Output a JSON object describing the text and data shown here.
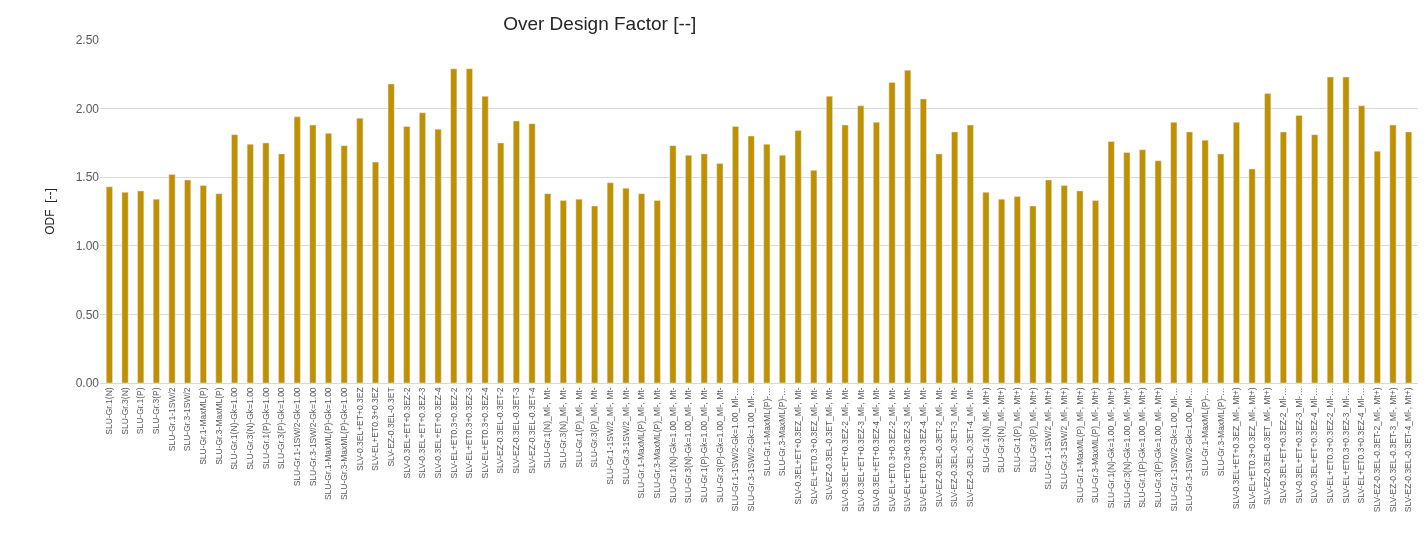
{
  "chart_data": {
    "type": "bar",
    "title": "Over Design Factor [--]",
    "ylabel": "ODF  [--]",
    "categories": [
      "SLU-Gr.1(N)",
      "SLU-Gr.3(N)",
      "SLU-Gr.1(P)",
      "SLU-Gr.3(P)",
      "SLU-Gr.1-1SW/2",
      "SLU-Gr.3-1SW/2",
      "SLU-Gr.1-MaxML(P)",
      "SLU-Gr.3-MaxML(P)",
      "SLU-Gr.1(N)-Gk=1.00",
      "SLU-Gr.3(N)-Gk=1.00",
      "SLU-Gr.1(P)-Gk=1.00",
      "SLU-Gr.3(P)-Gk=1.00",
      "SLU-Gr.1-1SW/2-Gk=1.00",
      "SLU-Gr.3-1SW/2-Gk=1.00",
      "SLU-Gr.1-MaxML(P)-Gk=1.00",
      "SLU-Gr.3-MaxML(P)-Gk=1.00",
      "SLV-0.3EL+ET+0.3EZ",
      "SLV-EL+ET0.3+0.3EZ",
      "SLV-EZ-0.3EL-0.3ET",
      "SLV-0.3EL+ET+0.3EZ-2",
      "SLV-0.3EL+ET+0.3EZ-3",
      "SLV-0.3EL+ET+0.3EZ-4",
      "SLV-EL+ET0.3+0.3EZ-2",
      "SLV-EL+ET0.3+0.3EZ-3",
      "SLV-EL+ET0.3+0.3EZ-4",
      "SLV-EZ-0.3EL-0.3ET-2",
      "SLV-EZ-0.3EL-0.3ET-3",
      "SLV-EZ-0.3EL-0.3ET-4",
      "SLU-Gr.1(N)_Ml-, Mt-",
      "SLU-Gr.3(N)_Ml-, Mt-",
      "SLU-Gr.1(P)_Ml-, Mt-",
      "SLU-Gr.3(P)_Ml-, Mt-",
      "SLU-Gr.1-1SW/2_Ml-, Mt-",
      "SLU-Gr.3-1SW/2_Ml-, Mt-",
      "SLU-Gr.1-MaxML(P)_Ml-, Mt-",
      "SLU-Gr.3-MaxML(P)_Ml-, Mt-",
      "SLU-Gr.1(N)-Gk=1.00_Ml-, Mt-",
      "SLU-Gr.3(N)-Gk=1.00_Ml-, Mt-",
      "SLU-Gr.1(P)-Gk=1.00_Ml-, Mt-",
      "SLU-Gr.3(P)-Gk=1.00_Ml-, Mt-",
      "SLU-Gr.1-1SW/2-Gk=1.00_Ml-…",
      "SLU-Gr.3-1SW/2-Gk=1.00_Ml-…",
      "SLU-Gr.1-MaxML(P)-…",
      "SLU-Gr.3-MaxML(P)-…",
      "SLV-0.3EL+ET+0.3EZ_Ml-, Mt-",
      "SLV-EL+ET0.3+0.3EZ_Ml-, Mt-",
      "SLV-EZ-0.3EL-0.3ET_Ml-, Mt-",
      "SLV-0.3EL+ET+0.3EZ-2_Ml-, Mt-",
      "SLV-0.3EL+ET+0.3EZ-3_Ml-, Mt-",
      "SLV-0.3EL+ET+0.3EZ-4_Ml-, Mt-",
      "SLV-EL+ET0.3+0.3EZ-2_Ml-, Mt-",
      "SLV-EL+ET0.3+0.3EZ-3_Ml-, Mt-",
      "SLV-EL+ET0.3+0.3EZ-4_Ml-, Mt-",
      "SLV-EZ-0.3EL-0.3ET-2_Ml-, Mt-",
      "SLV-EZ-0.3EL-0.3ET-3_Ml-, Mt-",
      "SLV-EZ-0.3EL-0.3ET-4_Ml-, Mt-",
      "SLU-Gr.1(N)_Ml-, Mt+)",
      "SLU-Gr.3(N)_Ml-, Mt+)",
      "SLU-Gr.1(P)_Ml-, Mt+)",
      "SLU-Gr.3(P)_Ml-, Mt+)",
      "SLU-Gr.1-1SW/2_Ml-, Mt+)",
      "SLU-Gr.3-1SW/2_Ml-, Mt+)",
      "SLU-Gr.1-MaxML(P)_Ml-, Mt+)",
      "SLU-Gr.3-MaxML(P)_Ml-, Mt+)",
      "SLU-Gr.1(N)-Gk=1.00_Ml-, Mt+)",
      "SLU-Gr.3(N)-Gk=1.00_Ml-, Mt+)",
      "SLU-Gr.1(P)-Gk=1.00_Ml-, Mt+)",
      "SLU-Gr.3(P)-Gk=1.00_Ml-, Mt+)",
      "SLU-Gr.1-1SW/2-Gk=1.00_Ml-…",
      "SLU-Gr.3-1SW/2-Gk=1.00_Ml-…",
      "SLU-Gr.1-MaxML(P)-…",
      "SLU-Gr.3-MaxML(P)-…",
      "SLV-0.3EL+ET+0.3EZ_Ml-, Mt+)",
      "SLV-EL+ET0.3+0.3EZ_Ml-, Mt+)",
      "SLV-EZ-0.3EL-0.3ET_Ml-, Mt+)",
      "SLV-0.3EL+ET+0.3EZ-2_Ml-…",
      "SLV-0.3EL+ET+0.3EZ-3_Ml-…",
      "SLV-0.3EL+ET+0.3EZ-4_Ml-…",
      "SLV-EL+ET0.3+0.3EZ-2_Ml-…",
      "SLV-EL+ET0.3+0.3EZ-3_Ml-…",
      "SLV-EL+ET0.3+0.3EZ-4_Ml-…",
      "SLV-EZ-0.3EL-0.3ET-2_Ml-, Mt+)",
      "SLV-EZ-0.3EL-0.3ET-3_Ml-, Mt+)",
      "SLV-EZ-0.3EL-0.3ET-4_Ml-, Mt+)"
    ],
    "values": [
      1.43,
      1.39,
      1.4,
      1.34,
      1.52,
      1.48,
      1.44,
      1.38,
      1.81,
      1.74,
      1.75,
      1.67,
      1.94,
      1.88,
      1.82,
      1.73,
      1.93,
      1.61,
      2.18,
      1.87,
      1.97,
      1.85,
      2.29,
      2.29,
      2.09,
      1.75,
      1.91,
      1.89,
      1.38,
      1.33,
      1.34,
      1.29,
      1.46,
      1.42,
      1.38,
      1.33,
      1.73,
      1.66,
      1.67,
      1.6,
      1.87,
      1.8,
      1.74,
      1.66,
      1.84,
      1.55,
      2.09,
      1.88,
      2.02,
      1.9,
      2.19,
      2.28,
      2.07,
      1.67,
      1.83,
      1.88,
      1.39,
      1.34,
      1.36,
      1.29,
      1.48,
      1.44,
      1.4,
      1.33,
      1.76,
      1.68,
      1.7,
      1.62,
      1.9,
      1.83,
      1.77,
      1.67,
      1.9,
      1.56,
      2.11,
      1.83,
      1.95,
      1.81,
      2.23,
      2.23,
      2.02,
      1.69,
      1.88,
      1.83
    ],
    "color": "#bf9000",
    "ylim": [
      0,
      2.5
    ],
    "yticks": [
      {
        "value": 0,
        "label": "0.00"
      },
      {
        "value": 0.5,
        "label": "0.50"
      },
      {
        "value": 1,
        "label": "1.00"
      },
      {
        "value": 1.5,
        "label": "1.50"
      },
      {
        "value": 2,
        "label": "2.00"
      },
      {
        "value": 2.5,
        "label": "2.50"
      }
    ],
    "grid": "y",
    "legend": false
  }
}
